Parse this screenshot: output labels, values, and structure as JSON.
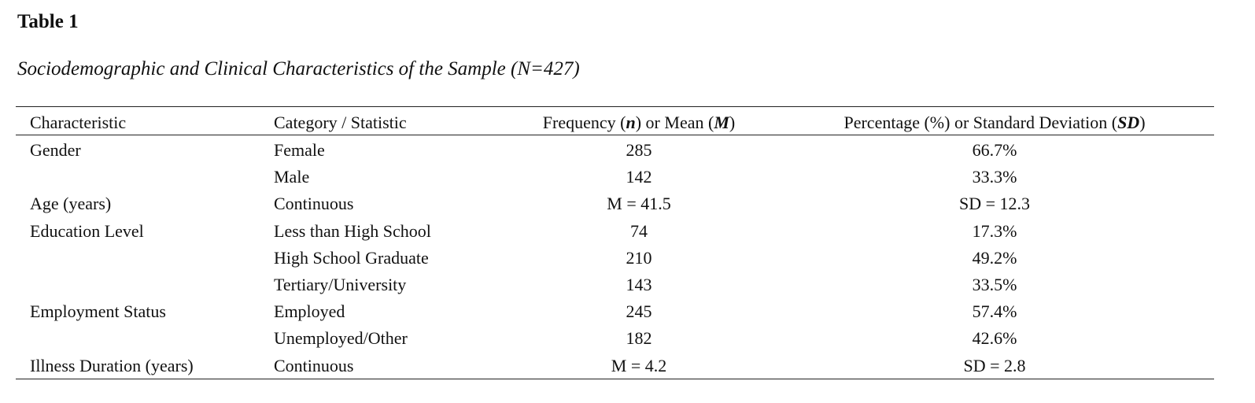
{
  "title": "Table 1",
  "subtitle": "Sociodemographic and Clinical Characteristics of the Sample (N=427)",
  "table": {
    "header": [
      [
        "Characteristic"
      ],
      [
        "Category / Statistic"
      ],
      [
        "Frequency (",
        "n",
        ") or Mean (",
        "M",
        ")"
      ],
      [
        "Percentage (%) or Standard Deviation (",
        "SD",
        ")"
      ]
    ],
    "rows": [
      [
        "Gender",
        "Female",
        285,
        "66.7%"
      ],
      [
        null,
        "Male",
        142,
        "33.3%"
      ],
      [
        "Age (years)",
        "Continuous",
        "M = 41.5",
        "SD = 12.3"
      ],
      [
        "Education Level",
        "Less than High School",
        74,
        "17.3%"
      ],
      [
        null,
        "High School Graduate",
        210,
        "49.2%"
      ],
      [
        null,
        "Tertiary/University",
        143,
        "33.5%"
      ],
      [
        "Employment Status",
        "Employed",
        245,
        "57.4%"
      ],
      [
        null,
        "Unemployed/Other",
        182,
        "42.6%"
      ],
      [
        "Illness Duration (years)",
        "Continuous",
        "M = 4.2",
        "SD = 2.8"
      ]
    ]
  }
}
